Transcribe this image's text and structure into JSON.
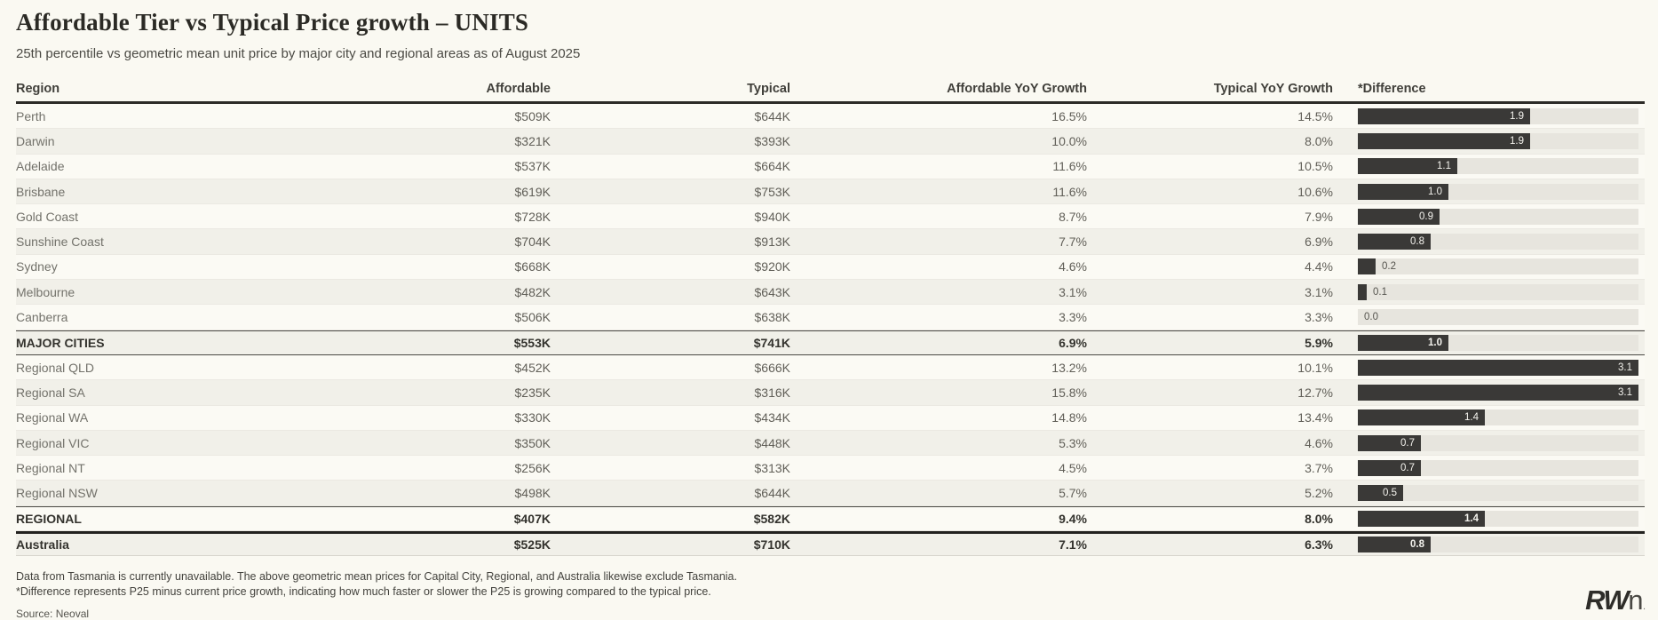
{
  "header": {
    "title": "Affordable Tier vs Typical Price growth – UNITS",
    "subtitle": "25th percentile vs geometric mean unit price by major city and regional areas as of August 2025"
  },
  "table": {
    "columns": [
      "Region",
      "Affordable",
      "Typical",
      "Affordable YoY Growth",
      "Typical YoY Growth",
      "*Difference"
    ],
    "diff_scale_max": 3.1,
    "rows": [
      {
        "region": "Perth",
        "affordable": "$509K",
        "typical": "$644K",
        "aff_yoy": "16.5%",
        "typ_yoy": "14.5%",
        "diff_label": "1.9",
        "diff_value": 1.9,
        "summary": false
      },
      {
        "region": "Darwin",
        "affordable": "$321K",
        "typical": "$393K",
        "aff_yoy": "10.0%",
        "typ_yoy": "8.0%",
        "diff_label": "1.9",
        "diff_value": 1.9,
        "summary": false
      },
      {
        "region": "Adelaide",
        "affordable": "$537K",
        "typical": "$664K",
        "aff_yoy": "11.6%",
        "typ_yoy": "10.5%",
        "diff_label": "1.1",
        "diff_value": 1.1,
        "summary": false
      },
      {
        "region": "Brisbane",
        "affordable": "$619K",
        "typical": "$753K",
        "aff_yoy": "11.6%",
        "typ_yoy": "10.6%",
        "diff_label": "1.0",
        "diff_value": 1.0,
        "summary": false
      },
      {
        "region": "Gold Coast",
        "affordable": "$728K",
        "typical": "$940K",
        "aff_yoy": "8.7%",
        "typ_yoy": "7.9%",
        "diff_label": "0.9",
        "diff_value": 0.9,
        "summary": false
      },
      {
        "region": "Sunshine Coast",
        "affordable": "$704K",
        "typical": "$913K",
        "aff_yoy": "7.7%",
        "typ_yoy": "6.9%",
        "diff_label": "0.8",
        "diff_value": 0.8,
        "summary": false
      },
      {
        "region": "Sydney",
        "affordable": "$668K",
        "typical": "$920K",
        "aff_yoy": "4.6%",
        "typ_yoy": "4.4%",
        "diff_label": "0.2",
        "diff_value": 0.2,
        "summary": false
      },
      {
        "region": "Melbourne",
        "affordable": "$482K",
        "typical": "$643K",
        "aff_yoy": "3.1%",
        "typ_yoy": "3.1%",
        "diff_label": "0.1",
        "diff_value": 0.1,
        "summary": false
      },
      {
        "region": "Canberra",
        "affordable": "$506K",
        "typical": "$638K",
        "aff_yoy": "3.3%",
        "typ_yoy": "3.3%",
        "diff_label": "0.0",
        "diff_value": 0.0,
        "summary": false
      },
      {
        "region": "MAJOR CITIES",
        "affordable": "$553K",
        "typical": "$741K",
        "aff_yoy": "6.9%",
        "typ_yoy": "5.9%",
        "diff_label": "1.0",
        "diff_value": 1.0,
        "summary": true,
        "border_top": "dark",
        "border_bottom": "dark"
      },
      {
        "region": "Regional QLD",
        "affordable": "$452K",
        "typical": "$666K",
        "aff_yoy": "13.2%",
        "typ_yoy": "10.1%",
        "diff_label": "3.1",
        "diff_value": 3.1,
        "summary": false
      },
      {
        "region": "Regional SA",
        "affordable": "$235K",
        "typical": "$316K",
        "aff_yoy": "15.8%",
        "typ_yoy": "12.7%",
        "diff_label": "3.1",
        "diff_value": 3.1,
        "summary": false
      },
      {
        "region": "Regional WA",
        "affordable": "$330K",
        "typical": "$434K",
        "aff_yoy": "14.8%",
        "typ_yoy": "13.4%",
        "diff_label": "1.4",
        "diff_value": 1.4,
        "summary": false
      },
      {
        "region": "Regional VIC",
        "affordable": "$350K",
        "typical": "$448K",
        "aff_yoy": "5.3%",
        "typ_yoy": "4.6%",
        "diff_label": "0.7",
        "diff_value": 0.7,
        "summary": false
      },
      {
        "region": "Regional NT",
        "affordable": "$256K",
        "typical": "$313K",
        "aff_yoy": "4.5%",
        "typ_yoy": "3.7%",
        "diff_label": "0.7",
        "diff_value": 0.7,
        "summary": false
      },
      {
        "region": "Regional NSW",
        "affordable": "$498K",
        "typical": "$644K",
        "aff_yoy": "5.7%",
        "typ_yoy": "5.2%",
        "diff_label": "0.5",
        "diff_value": 0.5,
        "summary": false
      },
      {
        "region": "REGIONAL",
        "affordable": "$407K",
        "typical": "$582K",
        "aff_yoy": "9.4%",
        "typ_yoy": "8.0%",
        "diff_label": "1.4",
        "diff_value": 1.4,
        "summary": true,
        "border_top": "dark"
      },
      {
        "region": "Australia",
        "affordable": "$525K",
        "typical": "$710K",
        "aff_yoy": "7.1%",
        "typ_yoy": "6.3%",
        "diff_label": "0.8",
        "diff_value": 0.8,
        "summary": true,
        "border_top": "thick",
        "last": true
      }
    ]
  },
  "chart_data": {
    "type": "table",
    "title": "Affordable Tier vs Typical Price growth – UNITS",
    "subtitle": "25th percentile vs geometric mean unit price by major city and regional areas as of August 2025",
    "columns": [
      "Region",
      "Affordable",
      "Typical",
      "Affordable YoY Growth",
      "Typical YoY Growth",
      "*Difference"
    ],
    "difference_bar": {
      "type": "bar",
      "orientation": "horizontal",
      "xlim": [
        0,
        3.1
      ],
      "bar_color": "#3a3937",
      "track_color": "#e7e5de"
    },
    "rows": [
      [
        "Perth",
        509,
        644,
        16.5,
        14.5,
        1.9
      ],
      [
        "Darwin",
        321,
        393,
        10.0,
        8.0,
        1.9
      ],
      [
        "Adelaide",
        537,
        664,
        11.6,
        10.5,
        1.1
      ],
      [
        "Brisbane",
        619,
        753,
        11.6,
        10.6,
        1.0
      ],
      [
        "Gold Coast",
        728,
        940,
        8.7,
        7.9,
        0.9
      ],
      [
        "Sunshine Coast",
        704,
        913,
        7.7,
        6.9,
        0.8
      ],
      [
        "Sydney",
        668,
        920,
        4.6,
        4.4,
        0.2
      ],
      [
        "Melbourne",
        482,
        643,
        3.1,
        3.1,
        0.1
      ],
      [
        "Canberra",
        506,
        638,
        3.3,
        3.3,
        0.0
      ],
      [
        "MAJOR CITIES",
        553,
        741,
        6.9,
        5.9,
        1.0
      ],
      [
        "Regional QLD",
        452,
        666,
        13.2,
        10.1,
        3.1
      ],
      [
        "Regional SA",
        235,
        316,
        15.8,
        12.7,
        3.1
      ],
      [
        "Regional WA",
        330,
        434,
        14.8,
        13.4,
        1.4
      ],
      [
        "Regional VIC",
        350,
        448,
        5.3,
        4.6,
        0.7
      ],
      [
        "Regional NT",
        256,
        313,
        4.5,
        3.7,
        0.7
      ],
      [
        "Regional NSW",
        498,
        644,
        5.7,
        5.2,
        0.5
      ],
      [
        "REGIONAL",
        407,
        582,
        9.4,
        8.0,
        1.4
      ],
      [
        "Australia",
        525,
        710,
        7.1,
        6.3,
        0.8
      ]
    ],
    "units": {
      "prices": "$K AUD",
      "growth": "%",
      "difference": "percentage points"
    }
  },
  "footnotes": {
    "line1": "Data from Tasmania is currently unavailable. The above geometric mean prices for Capital City, Regional, and Australia likewise exclude Tasmania.",
    "line2": "*Difference represents P25 minus current price growth, indicating how much faster or slower the P25 is growing compared to the typical price.",
    "source": "Source: Neoval"
  },
  "logo": {
    "rw": "RW",
    "n": "n",
    "dot": "."
  },
  "colors": {
    "page_bg": "#faf9f2",
    "row_light": "#fbfaf4",
    "row_dark": "#f1f0e9",
    "bar": "#3a3937",
    "bar_track": "#e7e5de",
    "header_border": "#2c2b27",
    "title_text": "#2b2a25"
  }
}
